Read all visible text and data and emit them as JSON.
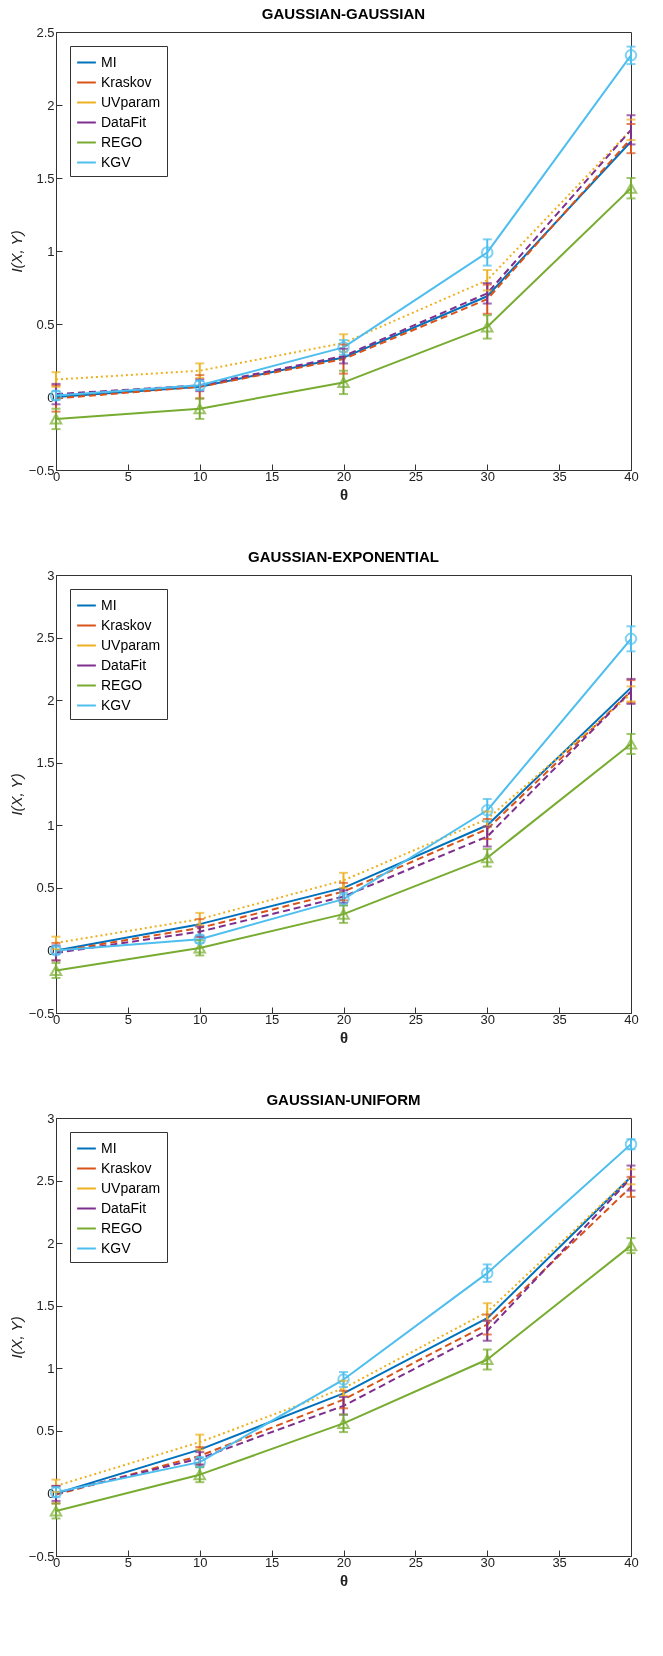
{
  "chart_data": [
    {
      "type": "line",
      "title": "GAUSSIAN-GAUSSIAN",
      "xlabel": "θ",
      "ylabel": "I(X, Y)",
      "x": [
        0,
        10,
        20,
        30,
        40
      ],
      "xlim": [
        0,
        40
      ],
      "xticks": [
        0,
        5,
        10,
        15,
        20,
        25,
        30,
        35,
        40
      ],
      "ylim": [
        -0.5,
        2.5
      ],
      "yticks": [
        -0.5,
        0,
        0.5,
        1,
        1.5,
        2,
        2.5
      ],
      "legend": "top left",
      "grid": false,
      "series": [
        {
          "name": "MI",
          "color": "#0072bd",
          "line_style": "solid",
          "values": [
            0,
            0.07,
            0.27,
            0.69,
            1.75
          ]
        },
        {
          "name": "Kraskov",
          "color": "#d95319",
          "line_style": "dashed",
          "values": [
            -0.01,
            0.07,
            0.26,
            0.67,
            1.77
          ],
          "errors": [
            0.09,
            0.08,
            0.1,
            0.1,
            0.1
          ]
        },
        {
          "name": "UVparam",
          "color": "#edb120",
          "line_style": "dotted",
          "values": [
            0.12,
            0.18,
            0.37,
            0.8,
            1.83
          ],
          "errors": [
            0.05,
            0.05,
            0.06,
            0.07,
            0.07
          ]
        },
        {
          "name": "DataFit",
          "color": "#7e2f8e",
          "line_style": "dashed",
          "values": [
            0.02,
            0.08,
            0.28,
            0.71,
            1.83
          ],
          "errors": [
            0.07,
            0.04,
            0.05,
            0.07,
            0.1
          ]
        },
        {
          "name": "REGO",
          "color": "#77ac30",
          "line_style": "solid",
          "marker": "triangle",
          "values": [
            -0.15,
            -0.08,
            0.1,
            0.48,
            1.43
          ],
          "errors": [
            0.07,
            0.07,
            0.08,
            0.08,
            0.07
          ]
        },
        {
          "name": "KGV",
          "color": "#4dbeee",
          "line_style": "solid",
          "marker": "circle",
          "values": [
            0.01,
            0.08,
            0.34,
            0.99,
            2.34
          ],
          "errors": [
            0.03,
            0.03,
            0.05,
            0.09,
            0.06
          ]
        }
      ]
    },
    {
      "type": "line",
      "title": "GAUSSIAN-EXPONENTIAL",
      "xlabel": "θ",
      "ylabel": "I(X, Y)",
      "x": [
        0,
        10,
        20,
        30,
        40
      ],
      "xlim": [
        0,
        40
      ],
      "xticks": [
        0,
        5,
        10,
        15,
        20,
        25,
        30,
        35,
        40
      ],
      "ylim": [
        -0.5,
        3
      ],
      "yticks": [
        -0.5,
        0,
        0.5,
        1,
        1.5,
        2,
        2.5,
        3
      ],
      "legend": "top left",
      "grid": false,
      "series": [
        {
          "name": "MI",
          "color": "#0072bd",
          "line_style": "solid",
          "values": [
            0,
            0.21,
            0.5,
            1.0,
            2.1
          ]
        },
        {
          "name": "Kraskov",
          "color": "#d95319",
          "line_style": "dashed",
          "values": [
            -0.01,
            0.18,
            0.47,
            0.97,
            2.07
          ],
          "errors": [
            0.07,
            0.07,
            0.07,
            0.08,
            0.09
          ]
        },
        {
          "name": "UVparam",
          "color": "#edb120",
          "line_style": "dotted",
          "values": [
            0.06,
            0.25,
            0.56,
            1.05,
            2.05
          ],
          "errors": [
            0.05,
            0.05,
            0.06,
            0.06,
            0.06
          ]
        },
        {
          "name": "DataFit",
          "color": "#7e2f8e",
          "line_style": "dashed",
          "values": [
            -0.02,
            0.15,
            0.43,
            0.91,
            2.07
          ],
          "errors": [
            0.06,
            0.04,
            0.05,
            0.08,
            0.1
          ]
        },
        {
          "name": "REGO",
          "color": "#77ac30",
          "line_style": "solid",
          "marker": "triangle",
          "values": [
            -0.16,
            0.02,
            0.29,
            0.74,
            1.65
          ],
          "errors": [
            0.06,
            0.06,
            0.07,
            0.07,
            0.08
          ]
        },
        {
          "name": "KGV",
          "color": "#4dbeee",
          "line_style": "solid",
          "marker": "circle",
          "values": [
            0,
            0.09,
            0.41,
            1.12,
            2.49
          ],
          "errors": [
            0.03,
            0.03,
            0.05,
            0.09,
            0.1
          ]
        }
      ]
    },
    {
      "type": "line",
      "title": "GAUSSIAN-UNIFORM",
      "xlabel": "θ",
      "ylabel": "I(X, Y)",
      "x": [
        0,
        10,
        20,
        30,
        40
      ],
      "xlim": [
        0,
        40
      ],
      "xticks": [
        0,
        5,
        10,
        15,
        20,
        25,
        30,
        35,
        40
      ],
      "ylim": [
        -0.5,
        3
      ],
      "yticks": [
        -0.5,
        0,
        0.5,
        1,
        1.5,
        2,
        2.5,
        3
      ],
      "legend": "top left",
      "grid": false,
      "series": [
        {
          "name": "MI",
          "color": "#0072bd",
          "line_style": "solid",
          "values": [
            0,
            0.35,
            0.8,
            1.4,
            2.53
          ]
        },
        {
          "name": "Kraskov",
          "color": "#d95319",
          "line_style": "dashed",
          "values": [
            -0.01,
            0.3,
            0.75,
            1.35,
            2.45
          ],
          "errors": [
            0.07,
            0.07,
            0.07,
            0.08,
            0.08
          ]
        },
        {
          "name": "UVparam",
          "color": "#edb120",
          "line_style": "dotted",
          "values": [
            0.06,
            0.41,
            0.84,
            1.45,
            2.53
          ],
          "errors": [
            0.05,
            0.06,
            0.06,
            0.07,
            0.06
          ]
        },
        {
          "name": "DataFit",
          "color": "#7e2f8e",
          "line_style": "dashed",
          "values": [
            0,
            0.28,
            0.7,
            1.3,
            2.52
          ],
          "errors": [
            0.06,
            0.05,
            0.07,
            0.08,
            0.1
          ]
        },
        {
          "name": "REGO",
          "color": "#77ac30",
          "line_style": "solid",
          "marker": "triangle",
          "values": [
            -0.14,
            0.15,
            0.56,
            1.07,
            1.98
          ],
          "errors": [
            0.06,
            0.06,
            0.07,
            0.08,
            0.06
          ]
        },
        {
          "name": "KGV",
          "color": "#4dbeee",
          "line_style": "solid",
          "marker": "circle",
          "values": [
            0.01,
            0.25,
            0.91,
            1.76,
            2.79
          ],
          "errors": [
            0.04,
            0.04,
            0.06,
            0.07,
            0.04
          ]
        }
      ]
    }
  ]
}
